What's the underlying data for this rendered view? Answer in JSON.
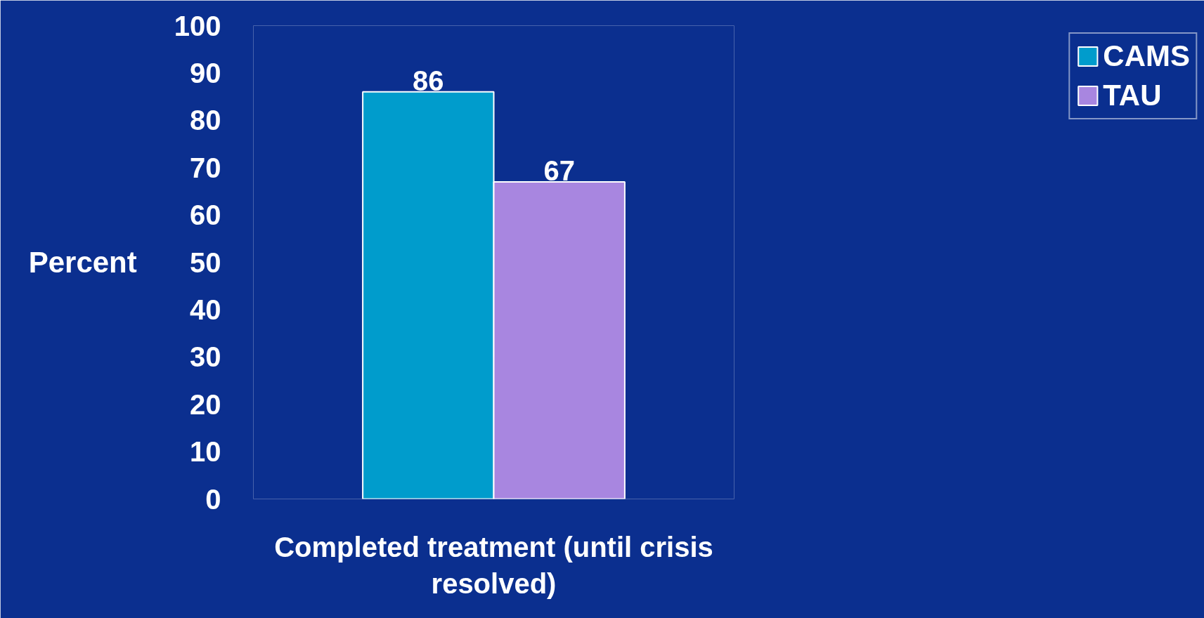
{
  "chart_data": {
    "type": "bar",
    "categories": [
      "Completed treatment (until crisis resolved)"
    ],
    "ylabel": "Percent",
    "ylim": [
      0,
      100
    ],
    "yticks": [
      0,
      10,
      20,
      30,
      40,
      50,
      60,
      70,
      80,
      90,
      100
    ],
    "series": [
      {
        "name": "CAMS",
        "color": "#009ccc",
        "values": [
          86
        ]
      },
      {
        "name": "TAU",
        "color": "#a886e0",
        "values": [
          67
        ]
      }
    ],
    "data_labels": true,
    "legend": "right",
    "grid": false
  }
}
